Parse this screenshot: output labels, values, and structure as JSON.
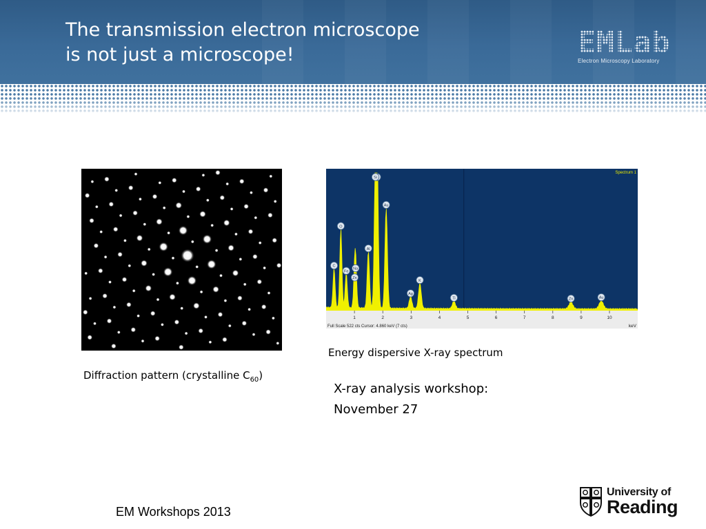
{
  "slide": {
    "title_lines": [
      "The transmission electron microscope",
      "is not just a microscope!"
    ],
    "logo": {
      "word": "EMLab",
      "subtitle": "Electron Microscopy Laboratory"
    },
    "diffraction_caption": {
      "text": "Diffraction pattern (crystalline C",
      "subscript": "60",
      "close": ")"
    },
    "spectrum_caption": "Energy dispersive X-ray spectrum",
    "workshop_lines": [
      "X-ray analysis workshop:",
      "November 27"
    ],
    "footer": "EM Workshops 2013",
    "university": {
      "line1": "University of",
      "line2": "Reading"
    }
  },
  "spectrum": {
    "corner_label": "Spectrum 1",
    "status_text": "Full Scale 522 cts  Cursor: 4.860 keV (7 cts)",
    "axis_unit": "keV",
    "axis_ticks": [
      "1",
      "2",
      "3",
      "4",
      "5",
      "6",
      "7",
      "8",
      "9",
      "10"
    ],
    "peaks": [
      {
        "label": "Au",
        "keV": 1.8,
        "counts": 522
      },
      {
        "label": "Si",
        "keV": 1.74,
        "counts": 500
      },
      {
        "label": "Au",
        "keV": 2.12,
        "counts": 380
      },
      {
        "label": "O",
        "keV": 0.52,
        "counts": 300
      },
      {
        "label": "Al",
        "keV": 1.49,
        "counts": 215
      },
      {
        "label": "Na",
        "keV": 1.04,
        "counts": 140
      },
      {
        "label": "C",
        "keV": 0.28,
        "counts": 150
      },
      {
        "label": "Fe",
        "keV": 0.71,
        "counts": 130
      },
      {
        "label": "Zn",
        "keV": 1.01,
        "counts": 105
      },
      {
        "label": "K",
        "keV": 3.31,
        "counts": 95
      },
      {
        "label": "Ag",
        "keV": 2.98,
        "counts": 45
      },
      {
        "label": "Ti",
        "keV": 4.51,
        "counts": 28
      },
      {
        "label": "Zn",
        "keV": 8.64,
        "counts": 25
      },
      {
        "label": "Au",
        "keV": 9.71,
        "counts": 30
      }
    ]
  },
  "colors": {
    "header": "#3a6a98",
    "spectrum_bg": "#0d3466",
    "spectrum_trace": "#f0f000"
  }
}
